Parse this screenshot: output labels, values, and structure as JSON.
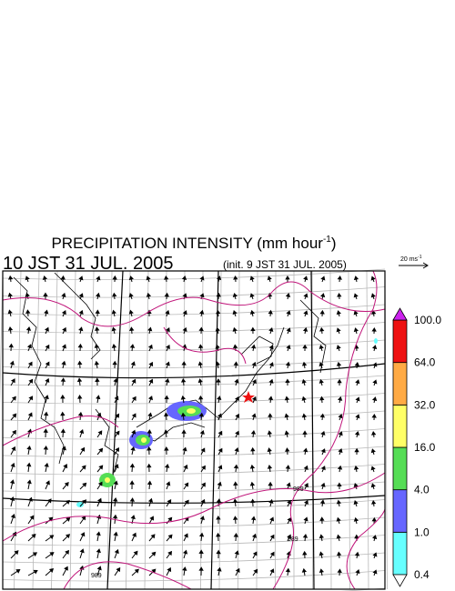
{
  "title": {
    "text": "PRECIPITATION INTENSITY (mm hour",
    "sup": "-1",
    "close": ")"
  },
  "subtitle": "10 JST 31 JUL. 2005",
  "init": "(init. 9 JST 31 JUL. 2005)",
  "vector_scale": {
    "text": "20 ms",
    "sup": "-1"
  },
  "colorbar": {
    "labels": [
      "0.4",
      "1.0",
      "4.0",
      "16.0",
      "32.0",
      "64.0",
      "100.0"
    ],
    "colors": [
      "#66ffff",
      "#6666ff",
      "#55dd55",
      "#ffff66",
      "#ffaa44",
      "#ee1111"
    ],
    "under_color": "#ffffff",
    "over_color": "#cc22ee"
  },
  "contour_labels": [
    "989",
    "989",
    "989"
  ]
}
